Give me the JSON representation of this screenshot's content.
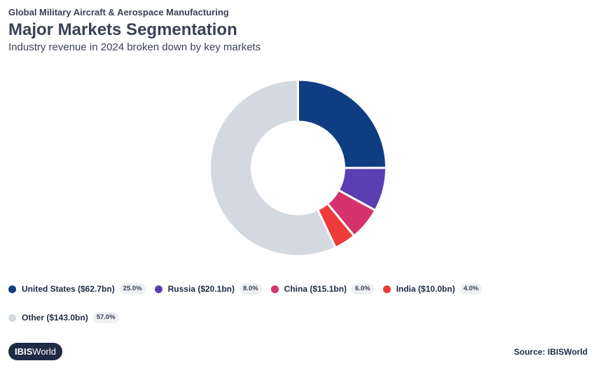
{
  "header": {
    "supertitle": "Global Military Aircraft & Aerospace Manufacturing",
    "title": "Major Markets Segmentation",
    "subtitle": "Industry revenue in 2024 broken down by key markets"
  },
  "chart_data": {
    "type": "pie",
    "variant": "donut",
    "title": "Major Markets Segmentation",
    "subtitle": "Industry revenue in 2024 broken down by key markets",
    "units": "$bn",
    "slices": [
      {
        "name": "United States",
        "label": "United States ($62.7bn)",
        "value": 62.7,
        "percent": 25.0,
        "percent_label": "25.0%",
        "color": "#0f3d82"
      },
      {
        "name": "Russia",
        "label": "Russia ($20.1bn)",
        "value": 20.1,
        "percent": 8.0,
        "percent_label": "8.0%",
        "color": "#5a3fb3"
      },
      {
        "name": "China",
        "label": "China ($15.1bn)",
        "value": 15.1,
        "percent": 6.0,
        "percent_label": "6.0%",
        "color": "#d6336c"
      },
      {
        "name": "India",
        "label": "India ($10.0bn)",
        "value": 10.0,
        "percent": 4.0,
        "percent_label": "4.0%",
        "color": "#ef3b3b"
      },
      {
        "name": "Other",
        "label": "Other ($143.0bn)",
        "value": 143.0,
        "percent": 57.0,
        "percent_label": "57.0%",
        "color": "#d3d9de"
      }
    ],
    "legend_position": "bottom",
    "start_angle": "12 o'clock",
    "direction": "clockwise"
  },
  "footer": {
    "logo_bold": "IBIS",
    "logo_rest": "World",
    "source": "Source: IBISWorld"
  }
}
